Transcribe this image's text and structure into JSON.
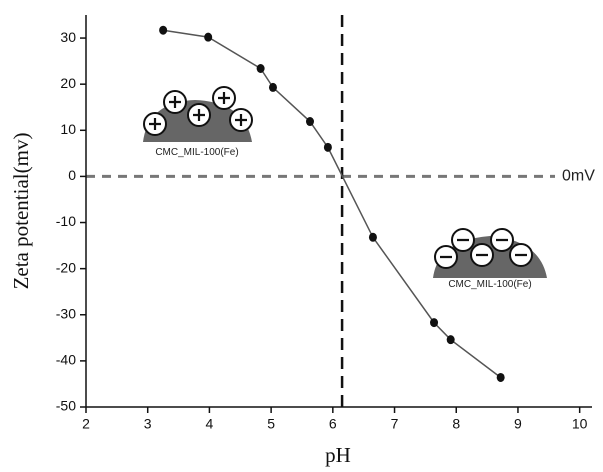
{
  "chart_data": {
    "type": "line",
    "x_label": "pH",
    "y_label": "Zeta potential(mv)",
    "x": [
      3.25,
      3.98,
      4.83,
      5.03,
      5.63,
      5.92,
      6.65,
      7.64,
      7.91,
      8.72
    ],
    "values": [
      31.7,
      30.2,
      23.4,
      19.3,
      11.9,
      6.3,
      -13.2,
      -31.7,
      -35.4,
      -43.6
    ],
    "color": "#555555",
    "xlim": [
      2,
      10.2
    ],
    "ylim": [
      -50,
      35
    ],
    "xticks": [
      2,
      3,
      4,
      5,
      6,
      7,
      8,
      9,
      10
    ],
    "yticks": [
      -50,
      -40,
      -30,
      -20,
      -10,
      0,
      10,
      20,
      30
    ],
    "vline": 6.15,
    "hline": 0,
    "hline_label": "0mV",
    "annotations": [
      "CMC_MIL-100(Fe)",
      "CMC_MIL-100(Fe)"
    ]
  }
}
